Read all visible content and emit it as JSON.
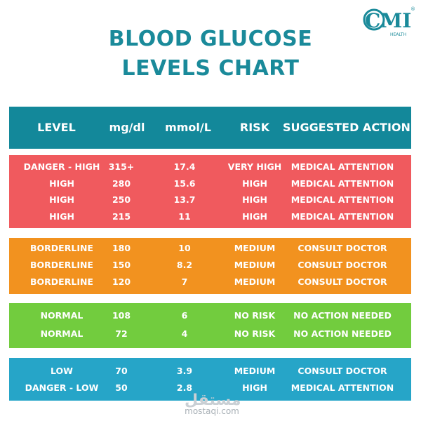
{
  "logo": {
    "letters": "CMI",
    "sub": "HEALTH",
    "reg": "®"
  },
  "title": {
    "line1": "BLOOD GLUCOSE",
    "line2": "LEVELS CHART"
  },
  "headers": [
    "LEVEL",
    "mg/dl",
    "mmol/L",
    "RISK",
    "SUGGESTED ACTION"
  ],
  "groups": {
    "danger_high": [
      {
        "level": "DANGER - HIGH",
        "mgdl": "315+",
        "mmol": "17.4",
        "risk": "VERY HIGH",
        "action": "MEDICAL ATTENTION"
      },
      {
        "level": "HIGH",
        "mgdl": "280",
        "mmol": "15.6",
        "risk": "HIGH",
        "action": "MEDICAL ATTENTION"
      },
      {
        "level": "HIGH",
        "mgdl": "250",
        "mmol": "13.7",
        "risk": "HIGH",
        "action": "MEDICAL ATTENTION"
      },
      {
        "level": "HIGH",
        "mgdl": "215",
        "mmol": "11",
        "risk": "HIGH",
        "action": "MEDICAL ATTENTION"
      }
    ],
    "borderline": [
      {
        "level": "BORDERLINE",
        "mgdl": "180",
        "mmol": "10",
        "risk": "MEDIUM",
        "action": "CONSULT DOCTOR"
      },
      {
        "level": "BORDERLINE",
        "mgdl": "150",
        "mmol": "8.2",
        "risk": "MEDIUM",
        "action": "CONSULT DOCTOR"
      },
      {
        "level": "BORDERLINE",
        "mgdl": "120",
        "mmol": "7",
        "risk": "MEDIUM",
        "action": "CONSULT DOCTOR"
      }
    ],
    "normal": [
      {
        "level": "NORMAL",
        "mgdl": "108",
        "mmol": "6",
        "risk": "NO RISK",
        "action": "NO ACTION NEEDED"
      },
      {
        "level": "NORMAL",
        "mgdl": "72",
        "mmol": "4",
        "risk": "NO RISK",
        "action": "NO ACTION NEEDED"
      }
    ],
    "low": [
      {
        "level": "LOW",
        "mgdl": "70",
        "mmol": "3.9",
        "risk": "MEDIUM",
        "action": "CONSULT DOCTOR"
      },
      {
        "level": "DANGER - LOW",
        "mgdl": "50",
        "mmol": "2.8",
        "risk": "HIGH",
        "action": "MEDICAL ATTENTION"
      }
    ]
  },
  "watermark": {
    "arabic": "مستقل",
    "latin": "mostaqi.com"
  },
  "colors": {
    "title": "#1a8a9a",
    "header": "#13889a",
    "danger_high": "#f05a5e",
    "borderline": "#f2921f",
    "normal": "#72cc3e",
    "low": "#26a5c8"
  }
}
